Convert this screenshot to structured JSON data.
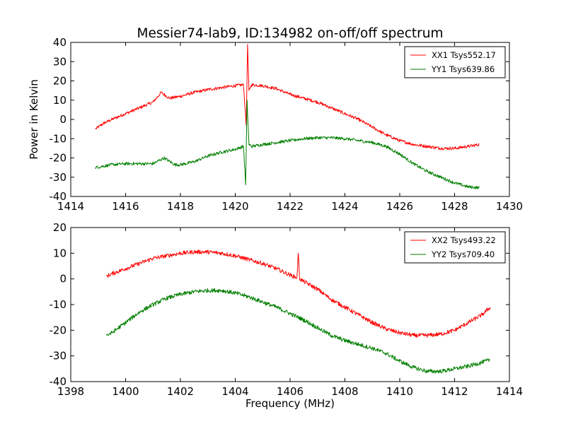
{
  "figure": {
    "title": "Messier74-lab9, ID:134982 on-off/off spectrum"
  },
  "chart_data": [
    {
      "type": "line",
      "ylabel": "Power in Kelvin",
      "xlabel": "",
      "xlim": [
        1414,
        1430
      ],
      "ylim": [
        -40,
        40
      ],
      "xticks": [
        1414,
        1416,
        1418,
        1420,
        1422,
        1424,
        1426,
        1428,
        1430
      ],
      "yticks": [
        -40,
        -30,
        -20,
        -10,
        0,
        10,
        20,
        30,
        40
      ],
      "grid": false,
      "legend": "top-right",
      "series": [
        {
          "name": "XX1 Tsys552.17",
          "color": "#ff0000",
          "x": [
            1414.9,
            1415.2,
            1415.5,
            1416.0,
            1416.5,
            1417.0,
            1417.3,
            1417.6,
            1418.0,
            1418.5,
            1419.0,
            1419.5,
            1420.0,
            1420.3,
            1420.4,
            1420.45,
            1420.5,
            1420.6,
            1421.0,
            1421.5,
            1422.0,
            1422.5,
            1423.0,
            1423.5,
            1424.0,
            1424.5,
            1425.0,
            1425.5,
            1426.0,
            1426.5,
            1427.0,
            1427.5,
            1428.0,
            1428.5,
            1428.9
          ],
          "y": [
            -5,
            -2,
            0,
            3,
            6,
            9,
            14,
            11,
            12,
            14,
            15.5,
            16.5,
            17.5,
            18,
            -3,
            39,
            15,
            18,
            17.5,
            16,
            13,
            11,
            9,
            6,
            3,
            0,
            -4,
            -8,
            -11,
            -13,
            -14,
            -15,
            -15,
            -14,
            -13
          ]
        },
        {
          "name": "YY1 Tsys639.86",
          "color": "#007f00",
          "x": [
            1414.9,
            1415.5,
            1416.0,
            1416.5,
            1417.0,
            1417.4,
            1417.8,
            1418.0,
            1418.5,
            1419.0,
            1419.5,
            1420.0,
            1420.3,
            1420.38,
            1420.43,
            1420.5,
            1420.6,
            1421.0,
            1421.5,
            1422.0,
            1422.5,
            1423.0,
            1423.5,
            1424.0,
            1424.5,
            1425.0,
            1425.5,
            1426.0,
            1426.5,
            1427.0,
            1427.5,
            1428.0,
            1428.5,
            1428.9
          ],
          "y": [
            -25,
            -23.5,
            -23,
            -23,
            -23,
            -20,
            -23.5,
            -23.5,
            -22,
            -19,
            -17,
            -15.5,
            -14,
            -34,
            10,
            -13,
            -14,
            -13,
            -12,
            -11,
            -10,
            -9.5,
            -9.5,
            -10,
            -11,
            -12,
            -14,
            -18,
            -23,
            -27,
            -30,
            -33,
            -35,
            -35.5
          ]
        }
      ]
    },
    {
      "type": "line",
      "xlabel": "Frequency (MHz)",
      "ylabel": "",
      "xlim": [
        1398,
        1414
      ],
      "ylim": [
        -40,
        20
      ],
      "xticks": [
        1398,
        1400,
        1402,
        1404,
        1406,
        1408,
        1410,
        1412,
        1414
      ],
      "yticks": [
        -40,
        -30,
        -20,
        -10,
        0,
        10,
        20
      ],
      "grid": false,
      "legend": "top-right",
      "series": [
        {
          "name": "XX2 Tsys493.22",
          "color": "#ff0000",
          "x": [
            1399.3,
            1399.5,
            1400.0,
            1400.5,
            1401.0,
            1401.5,
            1402.0,
            1402.5,
            1403.0,
            1403.5,
            1404.0,
            1404.5,
            1405.0,
            1405.5,
            1406.0,
            1406.25,
            1406.3,
            1406.35,
            1406.5,
            1407.0,
            1407.5,
            1408.0,
            1408.5,
            1409.0,
            1409.5,
            1410.0,
            1410.5,
            1411.0,
            1411.5,
            1412.0,
            1412.5,
            1413.0,
            1413.3
          ],
          "y": [
            1,
            2,
            4,
            6,
            8,
            9,
            10,
            10.5,
            10.5,
            10,
            9,
            7.5,
            6,
            4,
            1.5,
            0.5,
            10,
            0,
            -1,
            -4,
            -8,
            -11,
            -14,
            -17,
            -19.5,
            -21,
            -22,
            -22,
            -21.5,
            -20,
            -17,
            -14,
            -11
          ]
        },
        {
          "name": "YY2 Tsys709.40",
          "color": "#007f00",
          "x": [
            1399.3,
            1399.5,
            1400.0,
            1400.5,
            1401.0,
            1401.5,
            1402.0,
            1402.5,
            1403.0,
            1403.5,
            1404.0,
            1404.5,
            1405.0,
            1405.5,
            1406.0,
            1406.5,
            1407.0,
            1407.5,
            1408.0,
            1408.5,
            1409.0,
            1409.5,
            1410.0,
            1410.5,
            1411.0,
            1411.5,
            1412.0,
            1412.5,
            1413.0,
            1413.3
          ],
          "y": [
            -22,
            -21,
            -17,
            -13,
            -10,
            -7.5,
            -6,
            -5,
            -4.5,
            -4.5,
            -5.5,
            -7,
            -9,
            -11,
            -13.5,
            -16,
            -19,
            -22,
            -24,
            -25.5,
            -27,
            -29,
            -32,
            -34.5,
            -36,
            -36,
            -35,
            -34,
            -32.5,
            -31.5
          ]
        }
      ]
    }
  ]
}
